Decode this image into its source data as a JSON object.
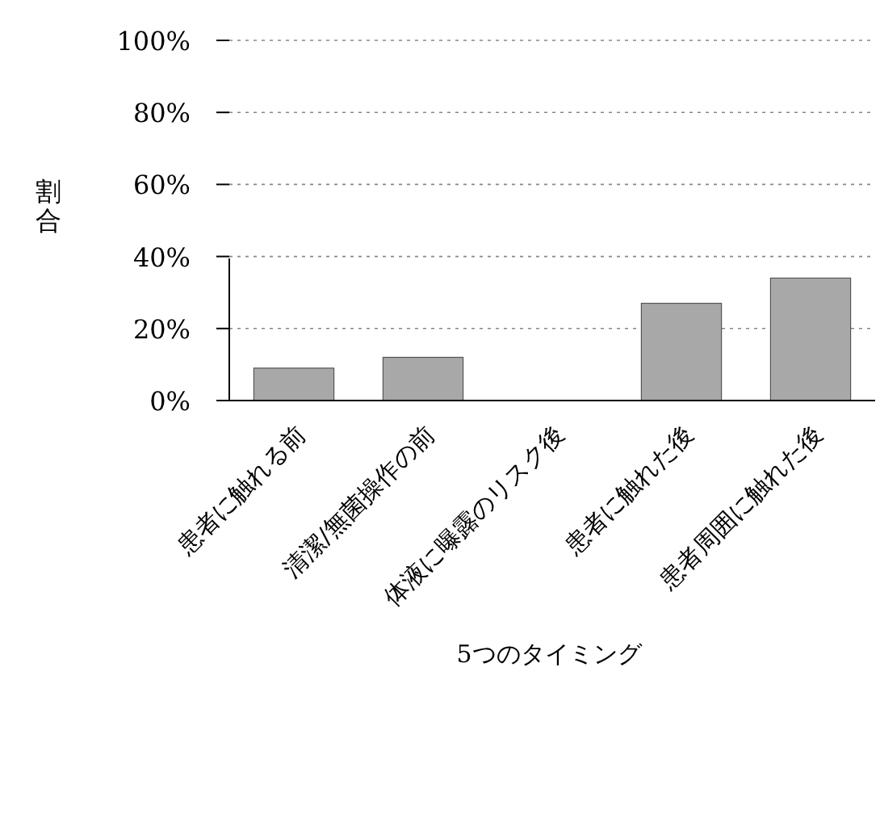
{
  "chart_data": {
    "type": "bar",
    "xlabel": "5つのタイミング",
    "ylabel": "割合",
    "categories": [
      "患者に触れる前",
      "清潔/無菌操作の前",
      "体液に曝露のリスク後",
      "患者に触れた後",
      "患者周囲に触れた後"
    ],
    "values": [
      9,
      12,
      0,
      27,
      34
    ],
    "color": "#a8a8a8",
    "ylim": [
      0,
      100
    ],
    "yticks": [
      {
        "value": 0,
        "label": "0%"
      },
      {
        "value": 20,
        "label": "20%"
      },
      {
        "value": 40,
        "label": "40%"
      },
      {
        "value": 60,
        "label": "60%"
      },
      {
        "value": 80,
        "label": "80%"
      },
      {
        "value": 100,
        "label": "100%"
      }
    ],
    "grid": "y"
  }
}
